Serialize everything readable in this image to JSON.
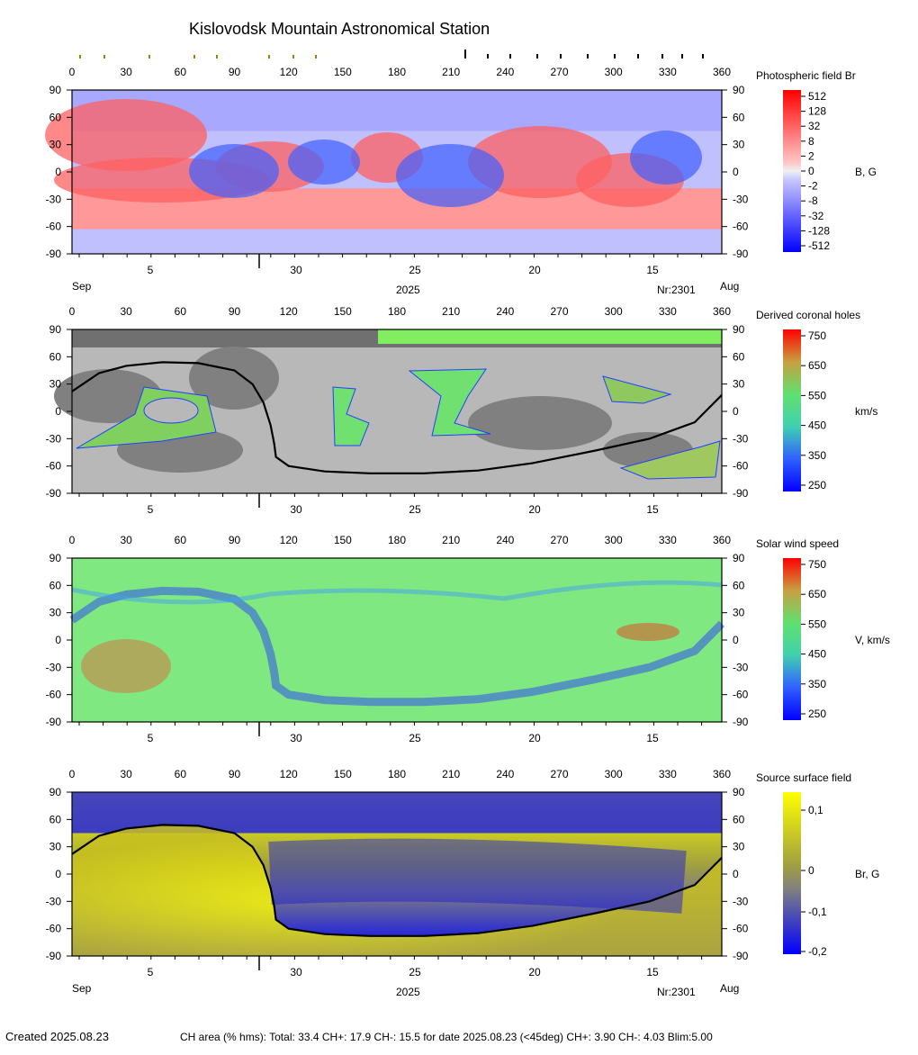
{
  "title": "Kislovodsk Mountain Astronomical Station",
  "x_ticks": [
    "0",
    "30",
    "60",
    "90",
    "120",
    "150",
    "180",
    "210",
    "240",
    "270",
    "300",
    "330",
    "360"
  ],
  "y_ticks": [
    "90",
    "60",
    "30",
    "0",
    "-30",
    "-60",
    "-90"
  ],
  "date_ticks": [
    "5",
    "30",
    "25",
    "20",
    "15"
  ],
  "month_left": "Sep",
  "month_right": "Aug",
  "year_label": "2025",
  "rotation_label": "Nr:2301",
  "panels": [
    {
      "id": "photospheric",
      "title": "Photospheric field Br",
      "unit": "B, G"
    },
    {
      "id": "coronal-holes",
      "title": "Derived coronal holes",
      "unit": "km/s"
    },
    {
      "id": "solar-wind",
      "title": "Solar wind speed",
      "unit": "V, km/s"
    },
    {
      "id": "source-surface",
      "title": "Source surface field",
      "unit": "Br, G"
    }
  ],
  "colorbars": {
    "photospheric": {
      "labels": [
        "512",
        "128",
        "32",
        "8",
        "2",
        "0",
        "-2",
        "-8",
        "-32",
        "-128",
        "-512"
      ],
      "pos_color": "#ff0000",
      "neg_color": "#0000ff"
    },
    "coronal-holes": {
      "labels": [
        "750",
        "650",
        "550",
        "450",
        "350",
        "250"
      ]
    },
    "solar-wind": {
      "labels": [
        "750",
        "650",
        "550",
        "450",
        "350",
        "250"
      ]
    },
    "source-surface": {
      "labels": [
        "0,1",
        "0",
        "-0,1",
        "-0,2"
      ],
      "pos_color": "#ffff00",
      "neg_color": "#0000ff"
    }
  },
  "footer": {
    "created": "Created  2025.08.23",
    "stats": "CH area (% hms): Total: 33.4 CH+: 17.9   CH-: 15.5 for date 2025.08.23 (<45deg) CH+: 3.90    CH-: 4.03 Blim:5.00"
  },
  "chart_data": {
    "type": "heatmap",
    "x_axis": {
      "label": "",
      "range": [
        0,
        360
      ],
      "ticks": [
        0,
        30,
        60,
        90,
        120,
        150,
        180,
        210,
        240,
        270,
        300,
        330,
        360
      ]
    },
    "y_axis": {
      "label": "",
      "range": [
        -90,
        90
      ],
      "ticks": [
        90,
        60,
        30,
        0,
        -30,
        -60,
        -90
      ]
    },
    "neutral_line": [
      [
        0,
        22
      ],
      [
        15,
        42
      ],
      [
        30,
        50
      ],
      [
        50,
        54
      ],
      [
        70,
        53
      ],
      [
        90,
        45
      ],
      [
        100,
        30
      ],
      [
        106,
        10
      ],
      [
        110,
        -15
      ],
      [
        112,
        -35
      ],
      [
        113,
        -50
      ],
      [
        120,
        -60
      ],
      [
        140,
        -66
      ],
      [
        165,
        -68
      ],
      [
        195,
        -68
      ],
      [
        225,
        -65
      ],
      [
        255,
        -57
      ],
      [
        290,
        -43
      ],
      [
        320,
        -30
      ],
      [
        345,
        -12
      ],
      [
        360,
        18
      ]
    ],
    "wind_speed_range": [
      250,
      750
    ],
    "source_surface_range": [
      -0.2,
      0.15
    ]
  }
}
